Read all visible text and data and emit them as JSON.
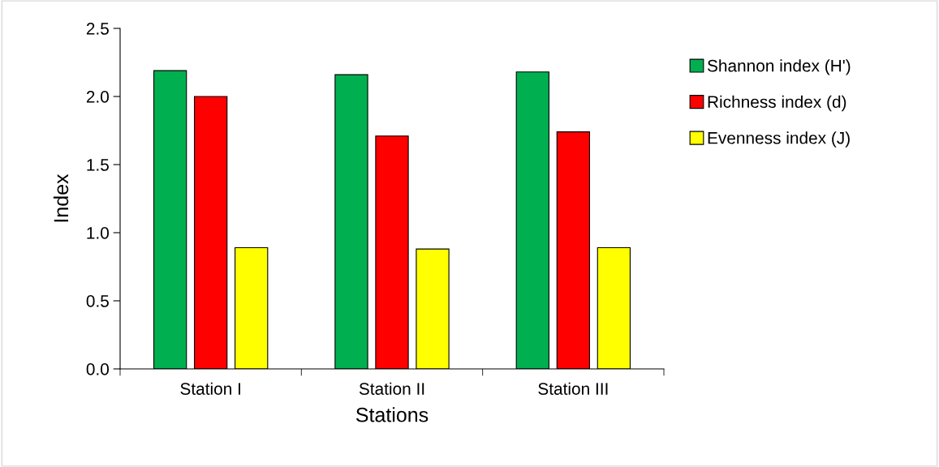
{
  "chart_data": {
    "type": "bar",
    "xlabel": "Stations",
    "ylabel": "Index",
    "categories": [
      "Station I",
      "Station II",
      "Station III"
    ],
    "series": [
      {
        "name": "Shannon index (H')",
        "color": "#00b050",
        "values": [
          2.19,
          2.16,
          2.18
        ]
      },
      {
        "name": "Richness index (d)",
        "color": "#ff0000",
        "values": [
          2.0,
          1.71,
          1.74
        ]
      },
      {
        "name": "Evenness index (J)",
        "color": "#ffff00",
        "values": [
          0.89,
          0.88,
          0.89
        ]
      }
    ],
    "ylim": [
      0,
      2.5
    ],
    "yticks": [
      {
        "value": 0,
        "label": "0.0"
      },
      {
        "value": 0.5,
        "label": "0.5"
      },
      {
        "value": 1,
        "label": "1.0"
      },
      {
        "value": 1.5,
        "label": "1.5"
      },
      {
        "value": 2,
        "label": "2.0"
      },
      {
        "value": 2.5,
        "label": "2.5"
      }
    ],
    "grid": false,
    "legend": "right"
  }
}
